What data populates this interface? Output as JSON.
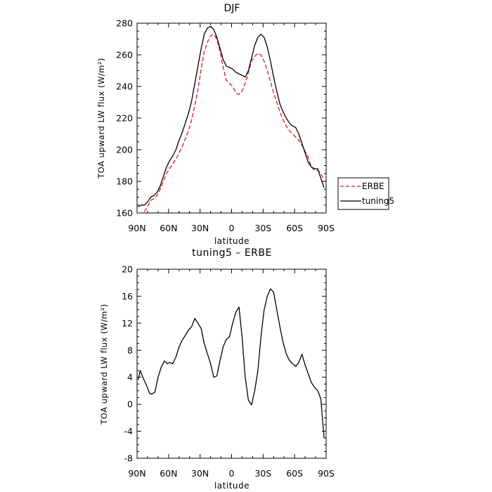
{
  "chart_data": [
    {
      "type": "line",
      "title": "DJF",
      "xlabel": "latitude",
      "ylabel": "TOA upward LW flux (W/m²)",
      "xlim": [
        90,
        -90
      ],
      "ylim": [
        160,
        280
      ],
      "x_tick_values": [
        90,
        60,
        30,
        0,
        -30,
        -60,
        -90
      ],
      "x_tick_labels": [
        "90N",
        "60N",
        "30N",
        "0",
        "30S",
        "60S",
        "90S"
      ],
      "y_tick_values": [
        160,
        180,
        200,
        220,
        240,
        260,
        280
      ],
      "y_tick_labels": [
        "160",
        "180",
        "200",
        "220",
        "240",
        "260",
        "280"
      ],
      "legend_position": "right",
      "series": [
        {
          "name": "ERBE",
          "color": "#e8141e",
          "dash": "dashed",
          "x": [
            89,
            86,
            83,
            80,
            77,
            74,
            71,
            68,
            65,
            62,
            59,
            56,
            53,
            50,
            47,
            44,
            41,
            38,
            35,
            32,
            29,
            26,
            23,
            20,
            17,
            14,
            11,
            8,
            5,
            2,
            -1,
            -4,
            -7,
            -10,
            -13,
            -16,
            -19,
            -22,
            -25,
            -28,
            -31,
            -34,
            -37,
            -40,
            -43,
            -46,
            -49,
            -52,
            -55,
            -58,
            -61,
            -64,
            -67,
            -70,
            -73,
            -76,
            -79,
            -82,
            -85,
            -88
          ],
          "y": [
            160,
            160,
            161,
            164,
            168,
            169,
            171,
            175,
            180,
            185,
            188,
            191,
            194,
            198,
            202,
            207,
            212,
            219,
            228,
            238,
            251,
            262,
            268,
            272,
            273,
            270,
            262,
            252,
            244,
            242,
            240,
            236,
            235,
            237,
            242,
            249,
            256,
            259,
            261,
            260,
            256,
            250,
            243,
            236,
            230,
            224,
            219,
            215,
            212,
            210,
            208,
            206,
            203,
            199,
            195,
            189,
            187,
            187,
            185,
            181
          ]
        },
        {
          "name": "tuning5",
          "color": "#000000",
          "dash": "solid",
          "x": [
            89,
            86,
            83,
            80,
            77,
            74,
            71,
            68,
            65,
            62,
            59,
            56,
            53,
            50,
            47,
            44,
            41,
            38,
            35,
            32,
            29,
            26,
            23,
            20,
            17,
            14,
            11,
            8,
            5,
            2,
            -1,
            -4,
            -7,
            -10,
            -13,
            -16,
            -19,
            -22,
            -25,
            -28,
            -31,
            -34,
            -37,
            -40,
            -43,
            -46,
            -49,
            -52,
            -55,
            -58,
            -61,
            -64,
            -67,
            -70,
            -73,
            -76,
            -79,
            -82,
            -85,
            -88
          ],
          "y": [
            164,
            165,
            165,
            167,
            170,
            171,
            173,
            177,
            183,
            189,
            193,
            196,
            200,
            206,
            211,
            217,
            223,
            231,
            242,
            253,
            264,
            273,
            277,
            278,
            276,
            271,
            264,
            257,
            253,
            252,
            251,
            249,
            248,
            247,
            246,
            250,
            258,
            266,
            271,
            273,
            271,
            265,
            256,
            246,
            237,
            229,
            224,
            220,
            217,
            215,
            214,
            210,
            204,
            198,
            192,
            189,
            188,
            188,
            182,
            176
          ]
        }
      ]
    },
    {
      "type": "line",
      "title": "tuning5 – ERBE",
      "xlabel": "latitude",
      "ylabel": "TOA upward LW flux (W/m²)",
      "xlim": [
        90,
        -90
      ],
      "ylim": [
        -8,
        20
      ],
      "x_tick_values": [
        90,
        60,
        30,
        0,
        -30,
        -60,
        -90
      ],
      "x_tick_labels": [
        "90N",
        "60N",
        "30N",
        "0",
        "30S",
        "60S",
        "90S"
      ],
      "y_tick_values": [
        -8,
        -4,
        0,
        4,
        8,
        12,
        16,
        20
      ],
      "y_tick_labels": [
        "-8",
        "-4",
        "0",
        "4",
        "8",
        "12",
        "16",
        "20"
      ],
      "series": [
        {
          "color": "#000000",
          "dash": "solid",
          "x": [
            89,
            87,
            84,
            81,
            78,
            76,
            73,
            70,
            67,
            64,
            61,
            59,
            56,
            53,
            50,
            47,
            44,
            41,
            38,
            35,
            32,
            29,
            26,
            23,
            20,
            17,
            14,
            11,
            8,
            5,
            2,
            -1,
            -4,
            -7,
            -10,
            -13,
            -16,
            -19,
            -22,
            -25,
            -28,
            -31,
            -34,
            -37,
            -40,
            -43,
            -46,
            -49,
            -52,
            -55,
            -58,
            -61,
            -64,
            -67,
            -70,
            -73,
            -76,
            -79,
            -82,
            -85,
            -88
          ],
          "y": [
            3.6,
            5,
            3.8,
            2.8,
            1.6,
            1.5,
            1.8,
            4,
            5.5,
            6.4,
            6,
            6.2,
            6,
            7,
            8.5,
            9.5,
            10.2,
            11,
            11.5,
            12.7,
            12,
            11.2,
            9,
            7.5,
            6,
            4,
            4.2,
            6.5,
            8.5,
            9.6,
            10,
            12,
            13.6,
            14.4,
            10,
            4,
            0.6,
            -0.1,
            2,
            5,
            10,
            14,
            16,
            17.1,
            16.6,
            14,
            11.5,
            9.2,
            7.5,
            6.5,
            6,
            5.6,
            6.2,
            7.4,
            5.8,
            4.5,
            3.2,
            2.5,
            2,
            0.8,
            -5
          ]
        }
      ]
    }
  ]
}
